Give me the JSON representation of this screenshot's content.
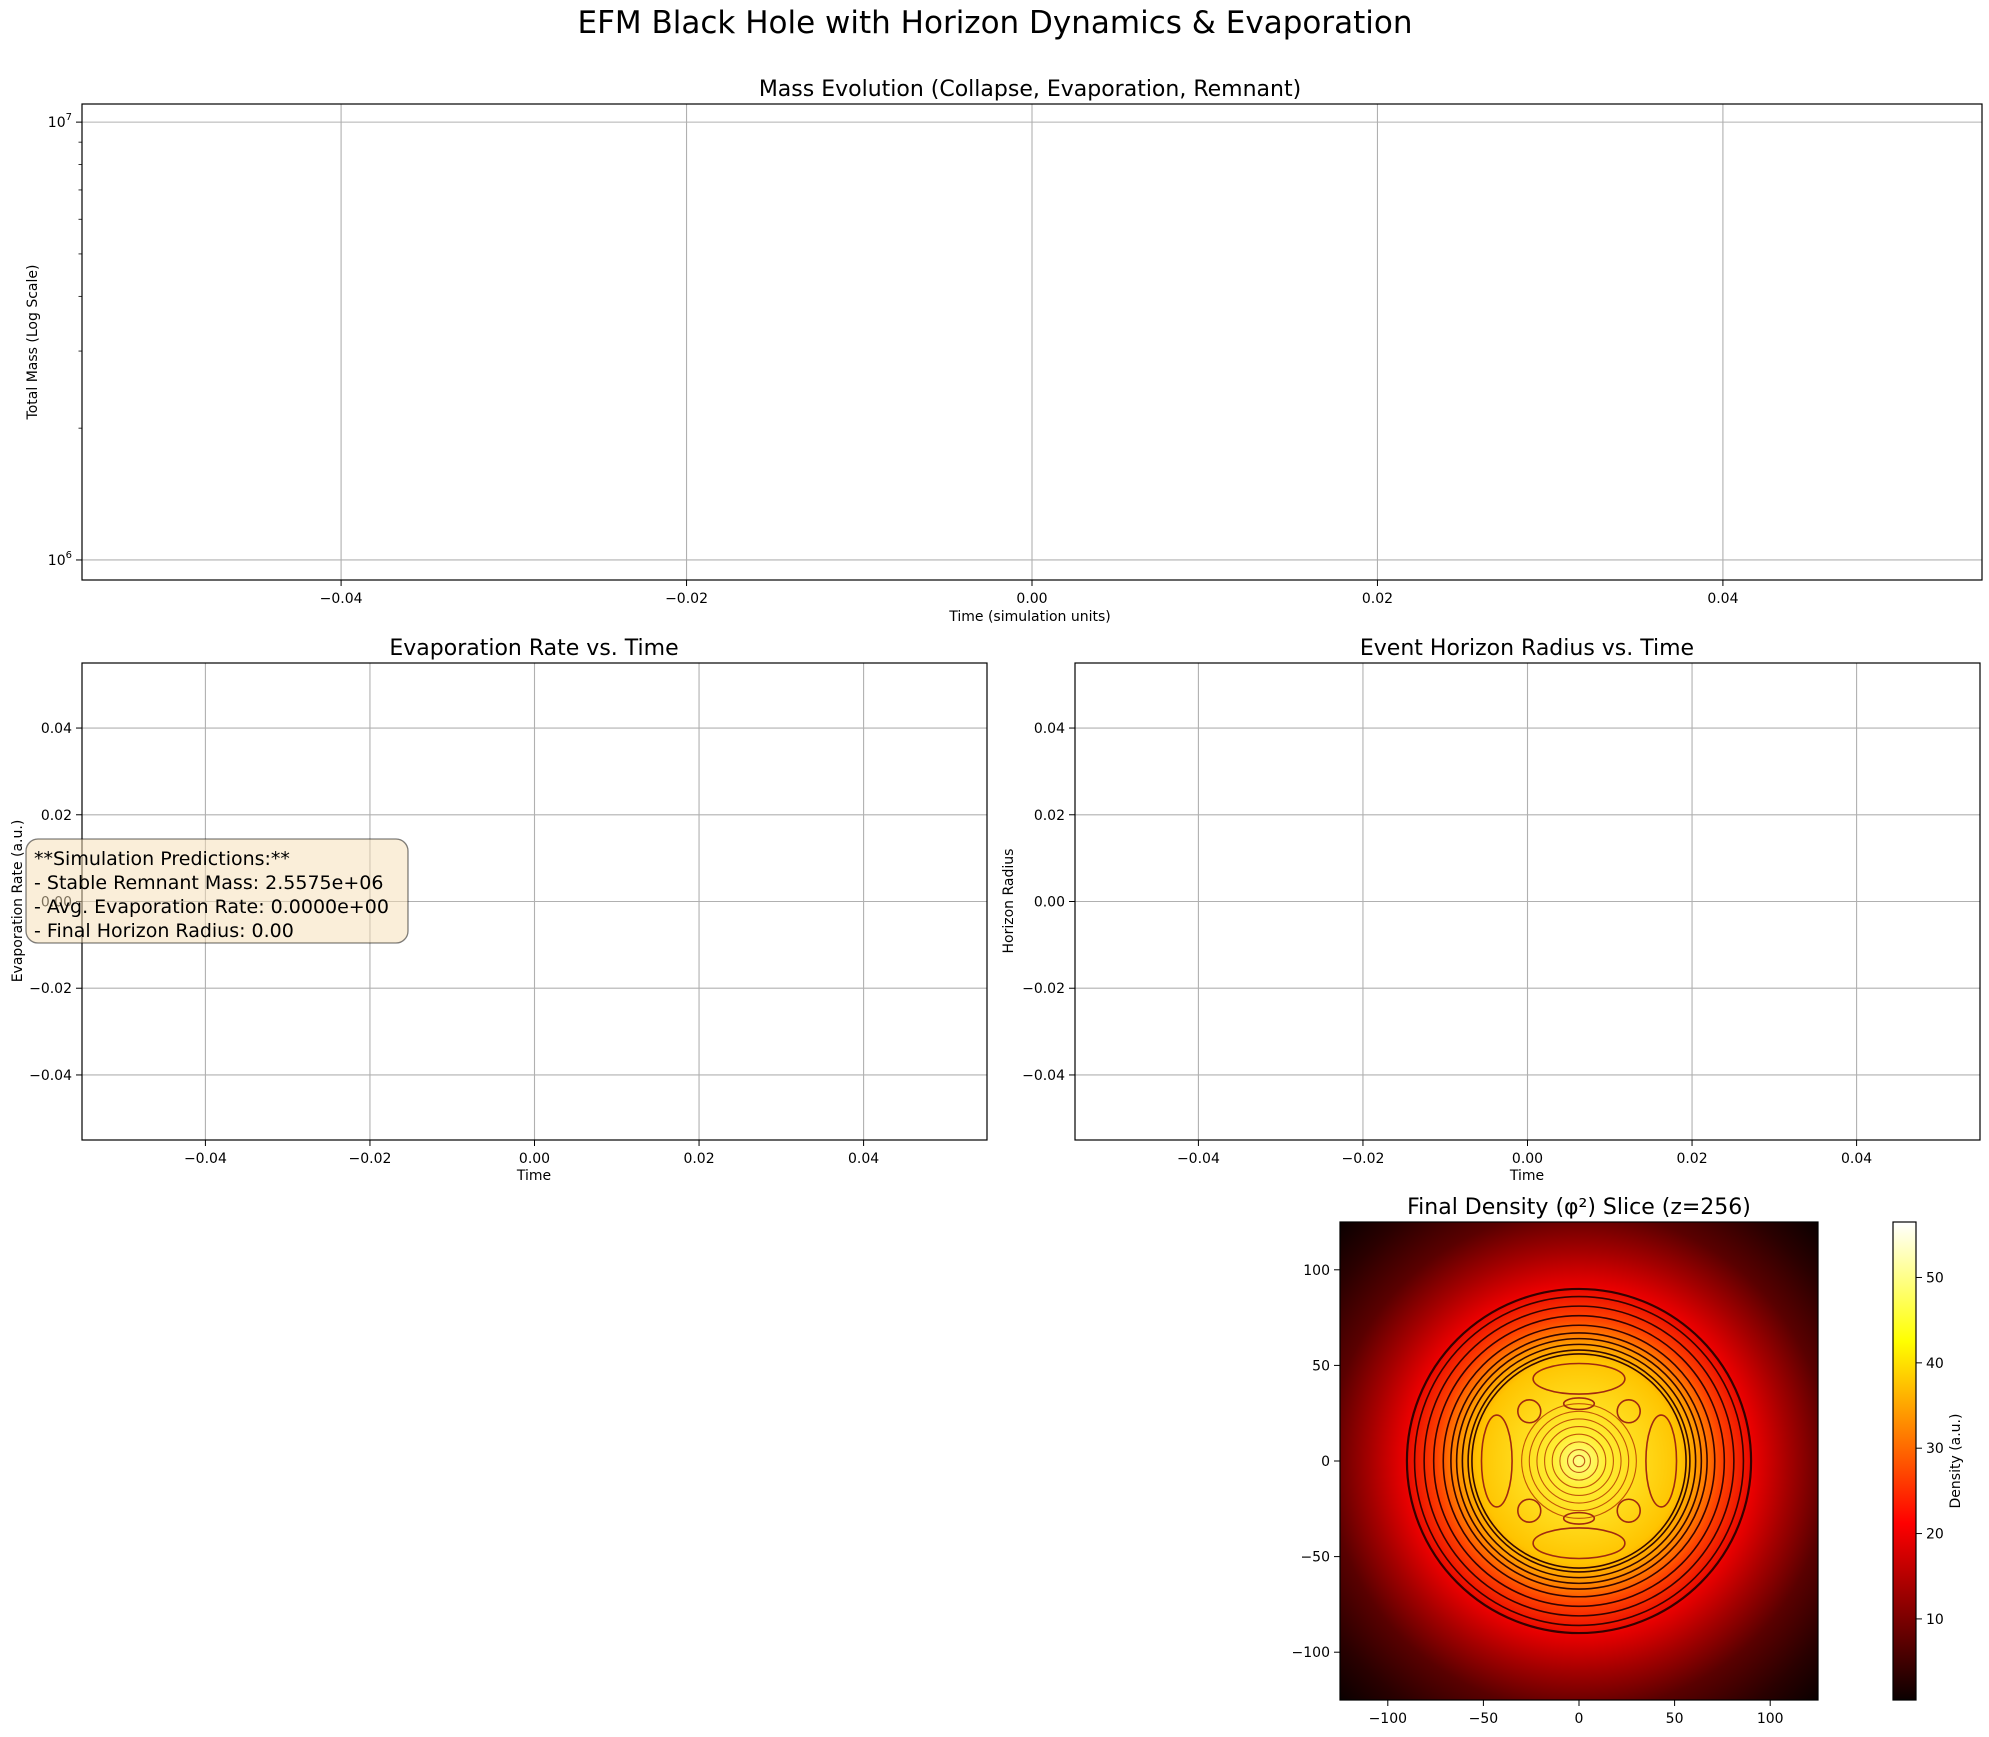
{
  "figure": {
    "suptitle": "EFM Black Hole with Horizon Dynamics & Evaporation"
  },
  "chart_data": [
    {
      "type": "line",
      "title": "Mass Evolution (Collapse, Evaporation, Remnant)",
      "xlabel": "Time (simulation units)",
      "ylabel": "Total Mass (Log Scale)",
      "xlim": [
        -0.055,
        0.055
      ],
      "ylim": [
        900000,
        11000000
      ],
      "yscale": "log",
      "grid": true,
      "series": [],
      "xticks": [
        {
          "value": -0.04,
          "label": "−0.04"
        },
        {
          "value": -0.02,
          "label": "−0.02"
        },
        {
          "value": 0.0,
          "label": "0.00"
        },
        {
          "value": 0.02,
          "label": "0.02"
        },
        {
          "value": 0.04,
          "label": "0.04"
        }
      ],
      "yticks_major": [
        {
          "value": 1000000,
          "base": "10",
          "exp": "6"
        },
        {
          "value": 10000000,
          "base": "10",
          "exp": "7"
        }
      ]
    },
    {
      "type": "line",
      "title": "Evaporation Rate vs. Time",
      "xlabel": "Time",
      "ylabel": "Evaporation Rate (a.u.)",
      "xlim": [
        -0.055,
        0.055
      ],
      "ylim": [
        -0.055,
        0.055
      ],
      "grid": true,
      "series": [],
      "xticks": [
        {
          "value": -0.04,
          "label": "−0.04"
        },
        {
          "value": -0.02,
          "label": "−0.02"
        },
        {
          "value": 0.0,
          "label": "0.00"
        },
        {
          "value": 0.02,
          "label": "0.02"
        },
        {
          "value": 0.04,
          "label": "0.04"
        }
      ],
      "yticks": [
        {
          "value": 0.04,
          "label": "0.04"
        },
        {
          "value": 0.02,
          "label": "0.02"
        },
        {
          "value": 0.0,
          "label": "0.00"
        },
        {
          "value": -0.02,
          "label": "−0.02"
        },
        {
          "value": -0.04,
          "label": "−0.04"
        }
      ],
      "annotation": {
        "lines": [
          "**Simulation Predictions:**",
          "- Stable Remnant Mass: 2.5575e+06",
          "- Avg. Evaporation Rate: 0.0000e+00",
          "- Final Horizon Radius: 0.00"
        ],
        "facecolor": "#f5deb3"
      }
    },
    {
      "type": "line",
      "title": "Event Horizon Radius vs. Time",
      "xlabel": "Time",
      "ylabel": "Horizon Radius",
      "xlim": [
        -0.055,
        0.055
      ],
      "ylim": [
        -0.055,
        0.055
      ],
      "grid": true,
      "series": [],
      "xticks": [
        {
          "value": -0.04,
          "label": "−0.04"
        },
        {
          "value": -0.02,
          "label": "−0.02"
        },
        {
          "value": 0.0,
          "label": "0.00"
        },
        {
          "value": 0.02,
          "label": "0.02"
        },
        {
          "value": 0.04,
          "label": "0.04"
        }
      ],
      "yticks": [
        {
          "value": 0.04,
          "label": "0.04"
        },
        {
          "value": 0.02,
          "label": "0.02"
        },
        {
          "value": 0.0,
          "label": "0.00"
        },
        {
          "value": -0.02,
          "label": "−0.02"
        },
        {
          "value": -0.04,
          "label": "−0.04"
        }
      ]
    },
    {
      "type": "heatmap",
      "title": "Final Density (φ²) Slice (z=256)",
      "colormap": "hot",
      "xlim": [
        -125,
        125
      ],
      "ylim": [
        -125,
        125
      ],
      "xticks": [
        {
          "value": -100,
          "label": "−100"
        },
        {
          "value": -50,
          "label": "−50"
        },
        {
          "value": 0,
          "label": "0"
        },
        {
          "value": 50,
          "label": "50"
        },
        {
          "value": 100,
          "label": "100"
        }
      ],
      "yticks": [
        {
          "value": 100,
          "label": "100"
        },
        {
          "value": 50,
          "label": "50"
        },
        {
          "value": 0,
          "label": "0"
        },
        {
          "value": -50,
          "label": "−50"
        },
        {
          "value": -100,
          "label": "−100"
        }
      ],
      "colorbar": {
        "label": "Density (a.u.)",
        "range": [
          0.5,
          56.5
        ],
        "ticks": [
          {
            "value": 10,
            "label": "10"
          },
          {
            "value": 20,
            "label": "20"
          },
          {
            "value": 30,
            "label": "30"
          },
          {
            "value": 40,
            "label": "40"
          },
          {
            "value": 50,
            "label": "50"
          }
        ]
      },
      "contour_rings_radius": [
        90,
        86,
        81,
        76,
        71,
        67,
        64,
        61,
        58,
        56,
        30,
        26,
        22,
        18,
        14,
        10,
        6,
        3
      ],
      "contour_blobs": [
        {
          "cx": 0,
          "cy": 43,
          "rx": 24,
          "ry": 8
        },
        {
          "cx": 0,
          "cy": -43,
          "rx": 24,
          "ry": 8
        },
        {
          "cx": -43,
          "cy": 0,
          "rx": 8,
          "ry": 24
        },
        {
          "cx": 43,
          "cy": 0,
          "rx": 8,
          "ry": 24
        },
        {
          "cx": -26,
          "cy": 26,
          "rx": 6,
          "ry": 6
        },
        {
          "cx": 26,
          "cy": 26,
          "rx": 6,
          "ry": 6
        },
        {
          "cx": -26,
          "cy": -26,
          "rx": 6,
          "ry": 6
        },
        {
          "cx": 26,
          "cy": -26,
          "rx": 6,
          "ry": 6
        },
        {
          "cx": 0,
          "cy": 30,
          "rx": 8,
          "ry": 3
        },
        {
          "cx": 0,
          "cy": -30,
          "rx": 8,
          "ry": 3
        }
      ]
    }
  ]
}
